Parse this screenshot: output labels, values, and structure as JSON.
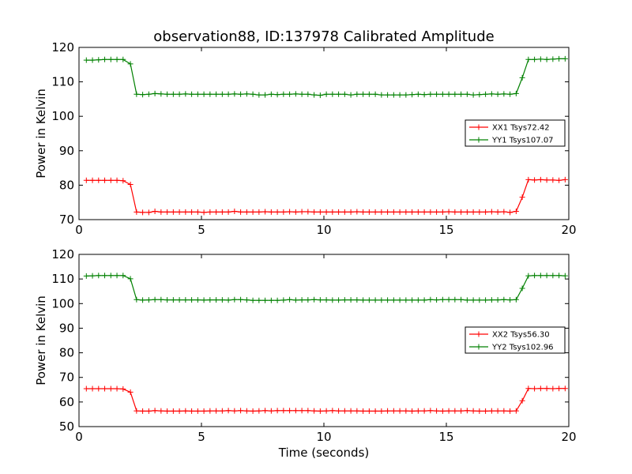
{
  "title": "observation88, ID:137978 Calibrated Amplitude",
  "xlabel": "Time (seconds)",
  "colors": {
    "xx": "#ff0000",
    "yy": "#008000",
    "axis": "#000000"
  },
  "chart_data": [
    {
      "type": "line",
      "title": "observation88, ID:137978 Calibrated Amplitude",
      "xlabel": "",
      "ylabel": "Power in Kelvin",
      "xlim": [
        0,
        20
      ],
      "ylim": [
        70,
        120
      ],
      "xticks": [
        0,
        5,
        10,
        15,
        20
      ],
      "yticks": [
        70,
        80,
        90,
        100,
        110,
        120
      ],
      "grid": false,
      "legend_position": "center-right",
      "series": [
        {
          "name": "XX1 Tsys72.42",
          "color": "#ff0000",
          "x": [
            0.3,
            0.55,
            0.8,
            1.05,
            1.3,
            1.55,
            1.8,
            2.1,
            2.35,
            2.6,
            2.85,
            3.1,
            3.35,
            3.6,
            3.85,
            4.1,
            4.35,
            4.6,
            4.85,
            5.1,
            5.35,
            5.6,
            5.85,
            6.1,
            6.35,
            6.6,
            6.85,
            7.1,
            7.35,
            7.6,
            7.85,
            8.1,
            8.35,
            8.6,
            8.85,
            9.1,
            9.35,
            9.6,
            9.85,
            10.1,
            10.35,
            10.6,
            10.85,
            11.1,
            11.35,
            11.6,
            11.85,
            12.1,
            12.35,
            12.6,
            12.85,
            13.1,
            13.35,
            13.6,
            13.85,
            14.1,
            14.35,
            14.6,
            14.85,
            15.1,
            15.35,
            15.6,
            15.85,
            16.1,
            16.35,
            16.6,
            16.85,
            17.1,
            17.35,
            17.6,
            17.85,
            18.1,
            18.35,
            18.6,
            18.85,
            19.1,
            19.35,
            19.6,
            19.85
          ],
          "y": [
            81.4,
            81.4,
            81.4,
            81.4,
            81.4,
            81.4,
            81.3,
            80.2,
            72.2,
            72.1,
            72.1,
            72.4,
            72.2,
            72.2,
            72.2,
            72.2,
            72.2,
            72.2,
            72.2,
            72.1,
            72.2,
            72.2,
            72.2,
            72.2,
            72.4,
            72.2,
            72.2,
            72.2,
            72.2,
            72.3,
            72.2,
            72.2,
            72.2,
            72.3,
            72.2,
            72.3,
            72.3,
            72.2,
            72.2,
            72.2,
            72.2,
            72.2,
            72.2,
            72.2,
            72.3,
            72.2,
            72.2,
            72.2,
            72.2,
            72.2,
            72.2,
            72.2,
            72.2,
            72.2,
            72.2,
            72.2,
            72.2,
            72.2,
            72.2,
            72.3,
            72.2,
            72.2,
            72.2,
            72.2,
            72.2,
            72.2,
            72.3,
            72.2,
            72.3,
            72.1,
            72.4,
            76.5,
            81.6,
            81.5,
            81.6,
            81.5,
            81.5,
            81.4,
            81.6
          ]
        },
        {
          "name": "YY1 Tsys107.07",
          "color": "#008000",
          "x": [
            0.3,
            0.55,
            0.8,
            1.05,
            1.3,
            1.55,
            1.8,
            2.1,
            2.35,
            2.6,
            2.85,
            3.1,
            3.35,
            3.6,
            3.85,
            4.1,
            4.35,
            4.6,
            4.85,
            5.1,
            5.35,
            5.6,
            5.85,
            6.1,
            6.35,
            6.6,
            6.85,
            7.1,
            7.35,
            7.6,
            7.85,
            8.1,
            8.35,
            8.6,
            8.85,
            9.1,
            9.35,
            9.6,
            9.85,
            10.1,
            10.35,
            10.6,
            10.85,
            11.1,
            11.35,
            11.6,
            11.85,
            12.1,
            12.35,
            12.6,
            12.85,
            13.1,
            13.35,
            13.6,
            13.85,
            14.1,
            14.35,
            14.6,
            14.85,
            15.1,
            15.35,
            15.6,
            15.85,
            16.1,
            16.35,
            16.6,
            16.85,
            17.1,
            17.35,
            17.6,
            17.85,
            18.1,
            18.35,
            18.6,
            18.85,
            19.1,
            19.35,
            19.6,
            19.85
          ],
          "y": [
            116.3,
            116.3,
            116.4,
            116.5,
            116.5,
            116.5,
            116.5,
            115.2,
            106.4,
            106.3,
            106.4,
            106.6,
            106.5,
            106.4,
            106.4,
            106.4,
            106.5,
            106.4,
            106.4,
            106.4,
            106.4,
            106.4,
            106.4,
            106.4,
            106.5,
            106.4,
            106.5,
            106.4,
            106.2,
            106.2,
            106.4,
            106.3,
            106.4,
            106.4,
            106.5,
            106.4,
            106.4,
            106.2,
            106.1,
            106.4,
            106.4,
            106.4,
            106.4,
            106.2,
            106.4,
            106.4,
            106.4,
            106.4,
            106.2,
            106.2,
            106.2,
            106.2,
            106.2,
            106.3,
            106.4,
            106.3,
            106.4,
            106.4,
            106.4,
            106.4,
            106.4,
            106.4,
            106.4,
            106.2,
            106.3,
            106.4,
            106.5,
            106.4,
            106.5,
            106.4,
            106.6,
            111.2,
            116.5,
            116.5,
            116.6,
            116.5,
            116.6,
            116.7,
            116.7
          ]
        }
      ]
    },
    {
      "type": "line",
      "title": "",
      "xlabel": "Time (seconds)",
      "ylabel": "Power in Kelvin",
      "xlim": [
        0,
        20
      ],
      "ylim": [
        50,
        120
      ],
      "xticks": [
        0,
        5,
        10,
        15,
        20
      ],
      "yticks": [
        50,
        60,
        70,
        80,
        90,
        100,
        110,
        120
      ],
      "grid": false,
      "legend_position": "center-right",
      "series": [
        {
          "name": "XX2 Tsys56.30",
          "color": "#ff0000",
          "x": [
            0.3,
            0.55,
            0.8,
            1.05,
            1.3,
            1.55,
            1.8,
            2.1,
            2.35,
            2.6,
            2.85,
            3.1,
            3.35,
            3.6,
            3.85,
            4.1,
            4.35,
            4.6,
            4.85,
            5.1,
            5.35,
            5.6,
            5.85,
            6.1,
            6.35,
            6.6,
            6.85,
            7.1,
            7.35,
            7.6,
            7.85,
            8.1,
            8.35,
            8.6,
            8.85,
            9.1,
            9.35,
            9.6,
            9.85,
            10.1,
            10.35,
            10.6,
            10.85,
            11.1,
            11.35,
            11.6,
            11.85,
            12.1,
            12.35,
            12.6,
            12.85,
            13.1,
            13.35,
            13.6,
            13.85,
            14.1,
            14.35,
            14.6,
            14.85,
            15.1,
            15.35,
            15.6,
            15.85,
            16.1,
            16.35,
            16.6,
            16.85,
            17.1,
            17.35,
            17.6,
            17.85,
            18.1,
            18.35,
            18.6,
            18.85,
            19.1,
            19.35,
            19.6,
            19.85
          ],
          "y": [
            65.4,
            65.4,
            65.4,
            65.4,
            65.4,
            65.4,
            65.3,
            64.0,
            56.4,
            56.3,
            56.3,
            56.5,
            56.4,
            56.3,
            56.3,
            56.3,
            56.4,
            56.3,
            56.3,
            56.3,
            56.4,
            56.4,
            56.4,
            56.5,
            56.4,
            56.5,
            56.4,
            56.3,
            56.4,
            56.5,
            56.4,
            56.5,
            56.5,
            56.5,
            56.5,
            56.5,
            56.5,
            56.4,
            56.3,
            56.4,
            56.5,
            56.4,
            56.4,
            56.4,
            56.4,
            56.3,
            56.3,
            56.3,
            56.3,
            56.4,
            56.4,
            56.4,
            56.4,
            56.3,
            56.4,
            56.4,
            56.5,
            56.4,
            56.3,
            56.4,
            56.4,
            56.4,
            56.5,
            56.4,
            56.3,
            56.3,
            56.4,
            56.4,
            56.4,
            56.3,
            56.4,
            60.5,
            65.5,
            65.4,
            65.5,
            65.5,
            65.4,
            65.5,
            65.5
          ]
        },
        {
          "name": "YY2 Tsys102.96",
          "color": "#008000",
          "x": [
            0.3,
            0.55,
            0.8,
            1.05,
            1.3,
            1.55,
            1.8,
            2.1,
            2.35,
            2.6,
            2.85,
            3.1,
            3.35,
            3.6,
            3.85,
            4.1,
            4.35,
            4.6,
            4.85,
            5.1,
            5.35,
            5.6,
            5.85,
            6.1,
            6.35,
            6.6,
            6.85,
            7.1,
            7.35,
            7.6,
            7.85,
            8.1,
            8.35,
            8.6,
            8.85,
            9.1,
            9.35,
            9.6,
            9.85,
            10.1,
            10.35,
            10.6,
            10.85,
            11.1,
            11.35,
            11.6,
            11.85,
            12.1,
            12.35,
            12.6,
            12.85,
            13.1,
            13.35,
            13.6,
            13.85,
            14.1,
            14.35,
            14.6,
            14.85,
            15.1,
            15.35,
            15.6,
            15.85,
            16.1,
            16.35,
            16.6,
            16.85,
            17.1,
            17.35,
            17.6,
            17.85,
            18.1,
            18.35,
            18.6,
            18.85,
            19.1,
            19.35,
            19.6,
            19.85
          ],
          "y": [
            111.2,
            111.3,
            111.4,
            111.4,
            111.4,
            111.4,
            111.4,
            110.1,
            101.6,
            101.4,
            101.5,
            101.6,
            101.6,
            101.5,
            101.5,
            101.5,
            101.5,
            101.5,
            101.5,
            101.4,
            101.5,
            101.5,
            101.5,
            101.4,
            101.6,
            101.6,
            101.5,
            101.3,
            101.3,
            101.3,
            101.3,
            101.3,
            101.4,
            101.6,
            101.4,
            101.5,
            101.5,
            101.6,
            101.5,
            101.5,
            101.4,
            101.4,
            101.5,
            101.5,
            101.5,
            101.4,
            101.4,
            101.4,
            101.4,
            101.4,
            101.4,
            101.4,
            101.4,
            101.4,
            101.4,
            101.4,
            101.6,
            101.5,
            101.6,
            101.6,
            101.6,
            101.6,
            101.4,
            101.4,
            101.4,
            101.4,
            101.5,
            101.5,
            101.6,
            101.5,
            101.6,
            106.2,
            111.3,
            111.4,
            111.4,
            111.4,
            111.4,
            111.4,
            111.3
          ]
        }
      ]
    }
  ]
}
